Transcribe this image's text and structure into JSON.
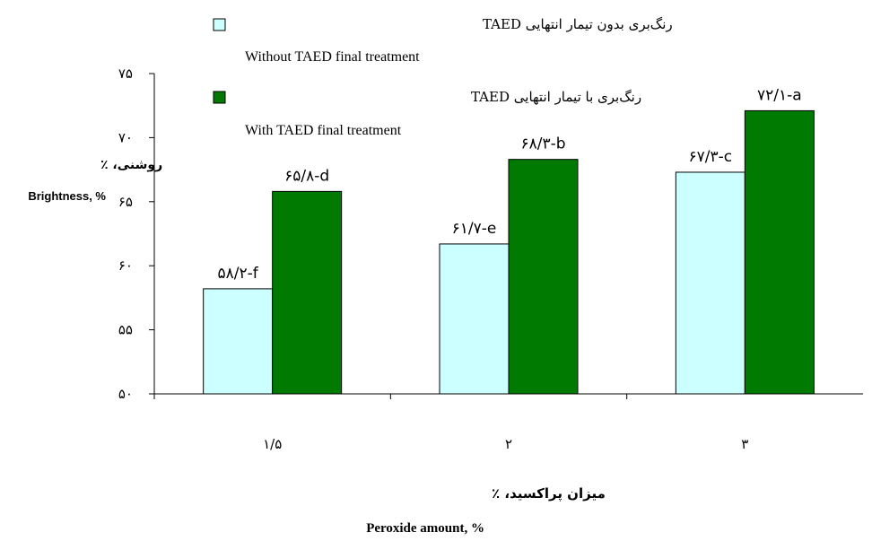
{
  "chart_data": {
    "type": "bar",
    "categories": [
      "۱/۵",
      "۲",
      "۳"
    ],
    "series": [
      {
        "name": "رنگ‌بری بدون تیمار انتهایی TAED",
        "name_en": "Without TAED final treatment",
        "color": "#ccffff",
        "values": [
          58.2,
          61.7,
          67.3
        ],
        "labels": [
          "۵۸/۲-f",
          "۶۱/۷-e",
          "۶۷/۳-c"
        ]
      },
      {
        "name": "رنگ‌بری با تیمار انتهایی TAED",
        "name_en": "With TAED final treatment",
        "color": "#007a00",
        "values": [
          65.8,
          68.3,
          72.1
        ],
        "labels": [
          "۶۵/۸-d",
          "۶۸/۳-b",
          "۷۲/۱-a"
        ]
      }
    ],
    "ylim": [
      50,
      75
    ],
    "yticks": [
      50,
      55,
      60,
      65,
      70,
      75
    ],
    "ytick_labels": [
      "۵۰",
      "۵۵",
      "۶۰",
      "۶۵",
      "۷۰",
      "۷۵"
    ],
    "ylabel": "روشنی، ٪",
    "ylabel_en": "Brightness, %",
    "xlabel": "میزان پراکسید، ٪",
    "xlabel_en": "Peroxide amount, %",
    "grid": false,
    "legend_position": "top-center"
  }
}
